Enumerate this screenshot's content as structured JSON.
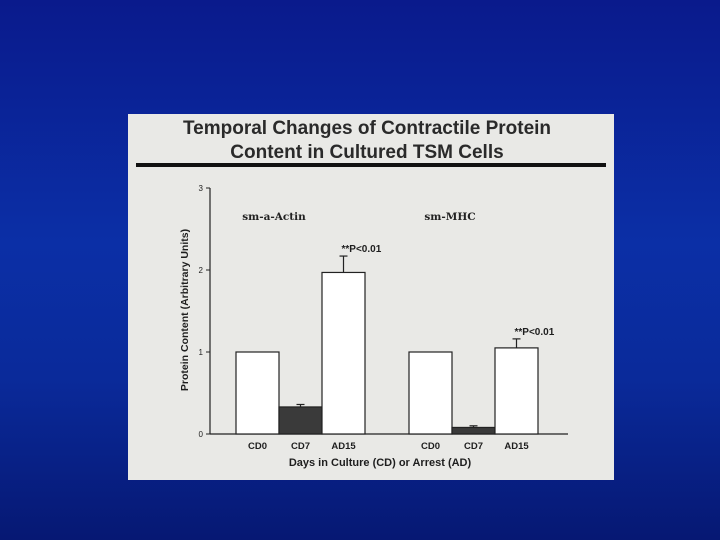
{
  "slide": {
    "background_color": "#0b2a9e"
  },
  "chart_data": {
    "type": "bar",
    "title_line_1": "Temporal Changes of Contractile Protein",
    "title_line_2": "Content in Cultured TSM Cells",
    "xlabel": "Days in Culture (CD) or Arrest (AD)",
    "ylabel": "Protein Content (Arbitrary Units)",
    "ylim": [
      0,
      3
    ],
    "yticks": [
      "0",
      "1",
      "2",
      "3"
    ],
    "grid": false,
    "groups": [
      {
        "label": "sm-a-Actin",
        "categories": [
          "CD0",
          "CD7",
          "AD15"
        ],
        "values": [
          1.0,
          0.33,
          1.97
        ],
        "errors": [
          0,
          0.03,
          0.2
        ],
        "fills": [
          "#ffffff",
          "#3a3a3a",
          "#ffffff"
        ],
        "annotation": "**P<0.01"
      },
      {
        "label": "sm-MHC",
        "categories": [
          "CD0",
          "CD7",
          "AD15"
        ],
        "values": [
          1.0,
          0.08,
          1.05
        ],
        "errors": [
          0,
          0.02,
          0.11
        ],
        "fills": [
          "#ffffff",
          "#3a3a3a",
          "#ffffff"
        ],
        "annotation": "**P<0.01"
      }
    ]
  }
}
